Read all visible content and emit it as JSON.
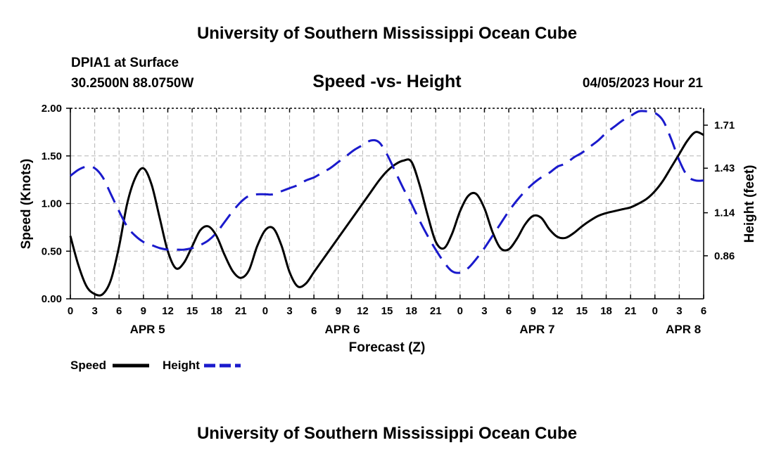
{
  "header": {
    "title": "University of Southern Mississippi Ocean Cube",
    "station": "DPIA1 at Surface",
    "coords": "30.2500N  88.0750W",
    "subtitle": "Speed -vs- Height",
    "datetime": "04/05/2023 Hour 21",
    "footer_title": "University of Southern Mississippi Ocean Cube"
  },
  "colors": {
    "speed": "#000000",
    "height": "#1a1acc",
    "grid": "#b4b4b4"
  },
  "chart_data": {
    "type": "line",
    "xlabel": "Forecast (Z)",
    "ylabel": "Speed (Knots)",
    "y2label": "Height (feet)",
    "xlim": [
      0,
      78
    ],
    "ylim": [
      0,
      2
    ],
    "y2lim": [
      0.58,
      1.82
    ],
    "grid": true,
    "x_ticks": [
      0,
      3,
      6,
      9,
      12,
      15,
      18,
      21,
      24,
      27,
      30,
      33,
      36,
      39,
      42,
      45,
      48,
      51,
      54,
      57,
      60,
      63,
      66,
      69,
      72,
      75,
      78
    ],
    "x_tick_labels": [
      "0",
      "3",
      "6",
      "9",
      "12",
      "15",
      "18",
      "21",
      "0",
      "3",
      "6",
      "9",
      "12",
      "15",
      "18",
      "21",
      "0",
      "3",
      "6",
      "9",
      "12",
      "15",
      "18",
      "21",
      "0",
      "3",
      "6"
    ],
    "y_ticks": [
      0,
      0.5,
      1,
      1.5,
      2
    ],
    "y_tick_labels": [
      "0.00",
      "0.50",
      "1.00",
      "1.50",
      "2.00"
    ],
    "y2_ticks": [
      0.86,
      1.14,
      1.43,
      1.71
    ],
    "y2_tick_labels": [
      "0.86",
      "1.14",
      "1.43",
      "1.71"
    ],
    "day_labels": [
      {
        "x": 9.5,
        "label": "APR 5"
      },
      {
        "x": 33.5,
        "label": "APR 6"
      },
      {
        "x": 57.5,
        "label": "APR 7"
      },
      {
        "x": 75.5,
        "label": "APR 8"
      }
    ],
    "legend": {
      "position": "bottom-left",
      "entries": [
        "Speed",
        "Height"
      ]
    },
    "series": [
      {
        "name": "Speed",
        "axis": "left",
        "style": "solid",
        "x": [
          0,
          1,
          2,
          3,
          4,
          5,
          6,
          7,
          8,
          9,
          10,
          11,
          12,
          13,
          14,
          15,
          16,
          17,
          18,
          19,
          20,
          21,
          22,
          23,
          24,
          25,
          26,
          27,
          28,
          29,
          30,
          31,
          32,
          33,
          34,
          35,
          36,
          37,
          38,
          39,
          40,
          41,
          42,
          43,
          44,
          45,
          46,
          47,
          48,
          49,
          50,
          51,
          52,
          53,
          54,
          55,
          56,
          57,
          58,
          59,
          60,
          61,
          62,
          63,
          64,
          65,
          66,
          67,
          68,
          69,
          70,
          71,
          72,
          73,
          74,
          75,
          76,
          77,
          78
        ],
        "values": [
          0.66,
          0.35,
          0.13,
          0.05,
          0.05,
          0.2,
          0.55,
          1.0,
          1.27,
          1.37,
          1.2,
          0.85,
          0.5,
          0.32,
          0.38,
          0.55,
          0.72,
          0.76,
          0.66,
          0.46,
          0.29,
          0.22,
          0.3,
          0.55,
          0.72,
          0.74,
          0.56,
          0.28,
          0.13,
          0.16,
          0.28,
          0.4,
          0.52,
          0.64,
          0.76,
          0.88,
          1.0,
          1.12,
          1.24,
          1.34,
          1.41,
          1.45,
          1.44,
          1.2,
          0.88,
          0.6,
          0.53,
          0.68,
          0.92,
          1.08,
          1.1,
          0.95,
          0.7,
          0.53,
          0.52,
          0.63,
          0.78,
          0.87,
          0.85,
          0.73,
          0.65,
          0.64,
          0.69,
          0.76,
          0.82,
          0.87,
          0.9,
          0.92,
          0.94,
          0.96,
          1.0,
          1.05,
          1.13,
          1.24,
          1.38,
          1.52,
          1.66,
          1.75,
          1.72
        ]
      },
      {
        "name": "Height",
        "axis": "right",
        "style": "dashed",
        "x": [
          0,
          1,
          2,
          3,
          4,
          5,
          6,
          7,
          8,
          9,
          10,
          11,
          12,
          13,
          14,
          15,
          16,
          17,
          18,
          19,
          20,
          21,
          22,
          23,
          24,
          25,
          26,
          27,
          28,
          29,
          30,
          31,
          32,
          33,
          34,
          35,
          36,
          37,
          38,
          39,
          40,
          41,
          42,
          43,
          44,
          45,
          46,
          47,
          48,
          49,
          50,
          51,
          52,
          53,
          54,
          55,
          56,
          57,
          58,
          59,
          60,
          61,
          62,
          63,
          64,
          65,
          66,
          67,
          68,
          69,
          70,
          71,
          72,
          73,
          74,
          75,
          76,
          77,
          78
        ],
        "values": [
          1.38,
          1.42,
          1.44,
          1.43,
          1.37,
          1.26,
          1.15,
          1.05,
          0.99,
          0.95,
          0.93,
          0.91,
          0.9,
          0.9,
          0.9,
          0.91,
          0.93,
          0.96,
          1.01,
          1.08,
          1.15,
          1.21,
          1.25,
          1.26,
          1.26,
          1.26,
          1.28,
          1.3,
          1.32,
          1.35,
          1.37,
          1.4,
          1.43,
          1.47,
          1.51,
          1.55,
          1.58,
          1.61,
          1.6,
          1.52,
          1.41,
          1.3,
          1.2,
          1.09,
          0.99,
          0.9,
          0.82,
          0.76,
          0.75,
          0.78,
          0.84,
          0.91,
          0.99,
          1.07,
          1.15,
          1.22,
          1.28,
          1.33,
          1.37,
          1.4,
          1.44,
          1.46,
          1.5,
          1.53,
          1.57,
          1.61,
          1.66,
          1.7,
          1.74,
          1.77,
          1.8,
          1.8,
          1.79,
          1.74,
          1.62,
          1.48,
          1.38,
          1.35,
          1.35
        ]
      }
    ]
  }
}
